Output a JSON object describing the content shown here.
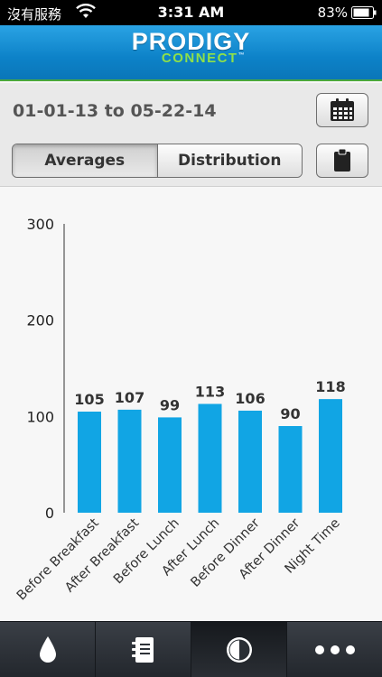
{
  "status_bar": {
    "carrier": "沒有服務",
    "time": "3:31 AM",
    "battery": "83%"
  },
  "app": {
    "logo_main": "PRODIGY",
    "logo_sub": "CONNECT",
    "logo_tm": "™"
  },
  "controls": {
    "date_range": "01-01-13 to 05-22-14",
    "segments": [
      {
        "label": "Averages",
        "selected": true
      },
      {
        "label": "Distribution",
        "selected": false
      }
    ],
    "calendar_icon": "calendar-icon",
    "clipboard_icon": "clipboard-icon"
  },
  "tabs": [
    {
      "icon": "drop-icon",
      "selected": false
    },
    {
      "icon": "notebook-icon",
      "selected": false
    },
    {
      "icon": "chart-circle-icon",
      "selected": true
    },
    {
      "icon": "more-icon",
      "selected": false
    }
  ],
  "colors": {
    "header": "#0d82c8",
    "accent_green": "#8fe04a",
    "bar": "#11a5e4"
  },
  "chart_data": {
    "type": "bar",
    "categories": [
      "Before Breakfast",
      "After Breakfast",
      "Before Lunch",
      "After Lunch",
      "Before Dinner",
      "After Dinner",
      "Night Time"
    ],
    "values": [
      105,
      107,
      99,
      113,
      106,
      90,
      118
    ],
    "data_labels": [
      "105",
      "107",
      "99",
      "113",
      "106",
      "90",
      "118"
    ],
    "y_ticks": [
      "0",
      "100",
      "200",
      "300"
    ],
    "ylim": [
      0,
      300
    ],
    "title": "",
    "xlabel": "",
    "ylabel": "",
    "grid": false,
    "legend": "none"
  }
}
